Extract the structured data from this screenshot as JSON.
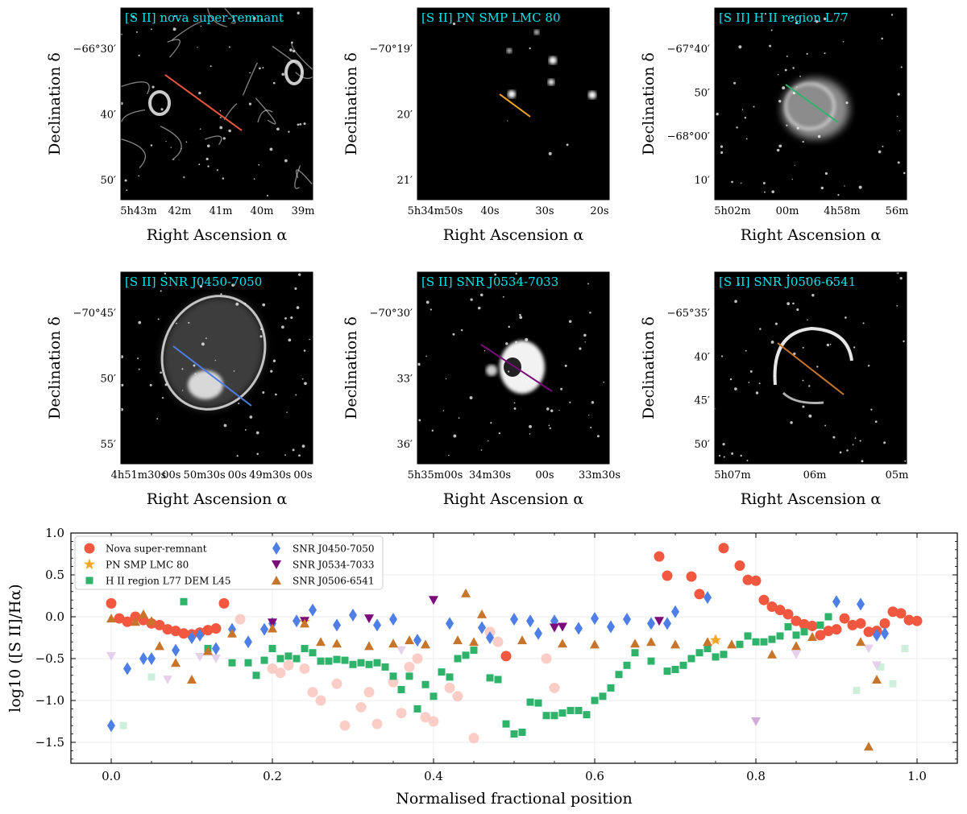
{
  "colors": {
    "nova": "#f2573f",
    "pn": "#f5a623",
    "hii": "#2fb36b",
    "j0450": "#4d7fe6",
    "j0534": "#7b0a7b",
    "j0506": "#c8752c",
    "label_cyan": "#00e5ee"
  },
  "panels": [
    {
      "label": "[S II] nova super-remnant",
      "xlabel": "Right Ascension α",
      "ylabel": "Declination δ",
      "x_ticks": [
        "5h43m",
        "42m",
        "41m",
        "40m",
        "39m"
      ],
      "y_ticks": [
        "−66°30′",
        "40′",
        "50′"
      ],
      "line_color": "#f2573f",
      "texture": "filaments"
    },
    {
      "label": "[S II] PN SMP LMC 80",
      "xlabel": "Right Ascension α",
      "ylabel": "Declination δ",
      "x_ticks": [
        "5h34m50s",
        "40s",
        "30s",
        "20s"
      ],
      "y_ticks": [
        "−70°19′",
        "20′",
        "21′"
      ],
      "line_color": "#f5a623",
      "texture": "dark"
    },
    {
      "label": "[S II] H II region L77",
      "xlabel": "Right Ascension α",
      "ylabel": "Declination δ",
      "x_ticks": [
        "5h02m",
        "00m",
        "4h58m",
        "56m"
      ],
      "y_ticks": [
        "−67°40′",
        "50′",
        "−68°00′",
        "10′"
      ],
      "line_color": "#2fb36b",
      "texture": "nebula"
    },
    {
      "label": "[S II] SNR J0450-7050",
      "xlabel": "Right Ascension α",
      "ylabel": "Declination δ",
      "x_ticks": [
        "4h51m30s",
        "00s",
        "50m30s",
        "00s",
        "49m30s",
        "00s"
      ],
      "y_ticks": [
        "−70°45′",
        "50′",
        "55′"
      ],
      "line_color": "#4d7fe6",
      "texture": "shell"
    },
    {
      "label": "[S II] SNR J0534-7033",
      "xlabel": "Right Ascension α",
      "ylabel": "Declination δ",
      "x_ticks": [
        "5h35m00s",
        "34m30s",
        "00s",
        "33m30s"
      ],
      "y_ticks": [
        "−70°30′",
        "33′",
        "36′"
      ],
      "line_color": "#7b0a7b",
      "texture": "blob"
    },
    {
      "label": "[S II] SNR J0506-6541",
      "xlabel": "Right Ascension α",
      "ylabel": "Declination δ",
      "x_ticks": [
        "5h07m",
        "06m",
        "05m"
      ],
      "y_ticks": [
        "−65°35′",
        "40′",
        "45′",
        "50′"
      ],
      "line_color": "#c8752c",
      "texture": "arc"
    }
  ],
  "chart_data": {
    "type": "scatter",
    "title": "",
    "xlabel": "Normalised fractional position",
    "ylabel": "log10 ([S II]/Hα)",
    "xlim": [
      -0.05,
      1.05
    ],
    "ylim": [
      -1.75,
      1.0
    ],
    "x_ticks": [
      "0.0",
      "0.2",
      "0.4",
      "0.6",
      "0.8",
      "1.0"
    ],
    "y_ticks": [
      "1.0",
      "0.5",
      "0.0",
      "−0.5",
      "−1.0",
      "−1.5"
    ],
    "grid": true,
    "legend_position": "top-left",
    "series": [
      {
        "name": "Nova super-remnant",
        "marker": "circle",
        "color": "#f2573f",
        "points": [
          [
            0.0,
            0.16
          ],
          [
            0.01,
            -0.02
          ],
          [
            0.02,
            -0.06
          ],
          [
            0.03,
            0.0
          ],
          [
            0.04,
            -0.04
          ],
          [
            0.05,
            -0.08
          ],
          [
            0.06,
            -0.1
          ],
          [
            0.07,
            -0.15
          ],
          [
            0.08,
            -0.17
          ],
          [
            0.09,
            -0.2
          ],
          [
            0.1,
            -0.21
          ],
          [
            0.11,
            -0.19
          ],
          [
            0.12,
            -0.16
          ],
          [
            0.13,
            -0.14
          ],
          [
            0.14,
            0.16
          ],
          [
            0.49,
            -0.47
          ],
          [
            0.68,
            0.72
          ],
          [
            0.69,
            0.49
          ],
          [
            0.72,
            0.48
          ],
          [
            0.73,
            0.27
          ],
          [
            0.76,
            0.82
          ],
          [
            0.78,
            0.61
          ],
          [
            0.79,
            0.44
          ],
          [
            0.8,
            0.43
          ],
          [
            0.81,
            0.2
          ],
          [
            0.82,
            0.12
          ],
          [
            0.83,
            0.08
          ],
          [
            0.84,
            0.03
          ],
          [
            0.85,
            -0.05
          ],
          [
            0.86,
            -0.09
          ],
          [
            0.87,
            -0.11
          ],
          [
            0.88,
            -0.22
          ],
          [
            0.89,
            -0.17
          ],
          [
            0.9,
            -0.15
          ],
          [
            0.91,
            -0.02
          ],
          [
            0.92,
            -0.1
          ],
          [
            0.93,
            -0.08
          ],
          [
            0.94,
            -0.18
          ],
          [
            0.95,
            -0.17
          ],
          [
            0.96,
            -0.08
          ],
          [
            0.97,
            0.06
          ],
          [
            0.98,
            0.04
          ],
          [
            0.99,
            -0.04
          ],
          [
            1.0,
            -0.05
          ]
        ]
      },
      {
        "name": "Nova super-remnant (faint)",
        "marker": "circle",
        "color": "#f9c6bc",
        "faint": true,
        "points": [
          [
            0.16,
            -0.03
          ],
          [
            0.2,
            -0.62
          ],
          [
            0.21,
            -0.67
          ],
          [
            0.22,
            -0.58
          ],
          [
            0.24,
            -0.62
          ],
          [
            0.25,
            -0.9
          ],
          [
            0.26,
            -1.0
          ],
          [
            0.28,
            -0.8
          ],
          [
            0.29,
            -1.3
          ],
          [
            0.31,
            -1.08
          ],
          [
            0.32,
            -0.9
          ],
          [
            0.33,
            -1.28
          ],
          [
            0.35,
            -0.78
          ],
          [
            0.36,
            -1.15
          ],
          [
            0.37,
            -0.6
          ],
          [
            0.38,
            -0.5
          ],
          [
            0.39,
            -1.2
          ],
          [
            0.4,
            -1.25
          ],
          [
            0.42,
            -0.85
          ],
          [
            0.43,
            -0.95
          ],
          [
            0.45,
            -1.45
          ],
          [
            0.47,
            -0.18
          ],
          [
            0.48,
            -0.3
          ],
          [
            0.54,
            -0.5
          ],
          [
            0.55,
            -0.85
          ]
        ]
      },
      {
        "name": "PN SMP LMC 80",
        "marker": "star",
        "color": "#f5a623",
        "points": [
          [
            0.24,
            -0.06
          ],
          [
            0.75,
            -0.28
          ]
        ]
      },
      {
        "name": "H II region L77 DEM L45",
        "marker": "square",
        "color": "#2fb36b",
        "points": [
          [
            0.09,
            0.18
          ],
          [
            0.12,
            -0.38
          ],
          [
            0.15,
            -0.55
          ],
          [
            0.17,
            -0.55
          ],
          [
            0.18,
            -0.7
          ],
          [
            0.19,
            -0.52
          ],
          [
            0.2,
            -0.38
          ],
          [
            0.21,
            -0.5
          ],
          [
            0.22,
            -0.47
          ],
          [
            0.23,
            -0.5
          ],
          [
            0.24,
            -0.38
          ],
          [
            0.25,
            -0.43
          ],
          [
            0.26,
            -0.53
          ],
          [
            0.27,
            -0.53
          ],
          [
            0.28,
            -0.51
          ],
          [
            0.29,
            -0.52
          ],
          [
            0.3,
            -0.57
          ],
          [
            0.31,
            -0.55
          ],
          [
            0.32,
            -0.57
          ],
          [
            0.33,
            -0.55
          ],
          [
            0.34,
            -0.6
          ],
          [
            0.35,
            -0.71
          ],
          [
            0.36,
            -0.87
          ],
          [
            0.37,
            -0.71
          ],
          [
            0.38,
            -1.1
          ],
          [
            0.39,
            -0.81
          ],
          [
            0.4,
            -0.95
          ],
          [
            0.41,
            -0.66
          ],
          [
            0.42,
            -0.72
          ],
          [
            0.43,
            -0.5
          ],
          [
            0.44,
            -0.46
          ],
          [
            0.45,
            -0.4
          ],
          [
            0.47,
            -0.73
          ],
          [
            0.48,
            -0.75
          ],
          [
            0.49,
            -1.28
          ],
          [
            0.5,
            -1.4
          ],
          [
            0.51,
            -1.38
          ],
          [
            0.52,
            -1.02
          ],
          [
            0.53,
            -1.03
          ],
          [
            0.54,
            -1.18
          ],
          [
            0.55,
            -1.18
          ],
          [
            0.56,
            -1.15
          ],
          [
            0.57,
            -1.12
          ],
          [
            0.58,
            -1.12
          ],
          [
            0.59,
            -1.17
          ],
          [
            0.6,
            -1.0
          ],
          [
            0.61,
            -0.95
          ],
          [
            0.62,
            -0.85
          ],
          [
            0.63,
            -0.69
          ],
          [
            0.64,
            -0.58
          ],
          [
            0.65,
            -0.43
          ],
          [
            0.67,
            -0.53
          ],
          [
            0.69,
            -0.65
          ],
          [
            0.7,
            -0.63
          ],
          [
            0.71,
            -0.58
          ],
          [
            0.72,
            -0.5
          ],
          [
            0.73,
            -0.43
          ],
          [
            0.74,
            -0.38
          ],
          [
            0.75,
            -0.48
          ],
          [
            0.76,
            -0.45
          ],
          [
            0.78,
            -0.33
          ],
          [
            0.79,
            -0.23
          ],
          [
            0.8,
            -0.3
          ],
          [
            0.81,
            -0.3
          ],
          [
            0.82,
            -0.27
          ],
          [
            0.83,
            -0.23
          ],
          [
            0.84,
            -0.12
          ],
          [
            0.85,
            -0.22
          ],
          [
            0.86,
            -0.18
          ],
          [
            0.88,
            -0.1
          ],
          [
            0.89,
            0.0
          ]
        ]
      },
      {
        "name": "H II region L77 DEM L45 (faint)",
        "marker": "square",
        "color": "#c6ecd5",
        "faint": true,
        "points": [
          [
            0.015,
            -1.3
          ],
          [
            0.05,
            -0.72
          ],
          [
            0.925,
            -0.88
          ],
          [
            0.955,
            -0.6
          ],
          [
            0.97,
            -0.8
          ],
          [
            0.985,
            -0.38
          ]
        ]
      },
      {
        "name": "SNR J0450-7050",
        "marker": "diamond",
        "color": "#4d7fe6",
        "points": [
          [
            0.0,
            -1.3
          ],
          [
            0.02,
            -0.62
          ],
          [
            0.04,
            -0.5
          ],
          [
            0.05,
            -0.5
          ],
          [
            0.08,
            -0.4
          ],
          [
            0.1,
            -0.25
          ],
          [
            0.11,
            -0.22
          ],
          [
            0.13,
            -0.38
          ],
          [
            0.15,
            -0.15
          ],
          [
            0.17,
            -0.3
          ],
          [
            0.19,
            -0.15
          ],
          [
            0.2,
            -0.08
          ],
          [
            0.23,
            -0.05
          ],
          [
            0.25,
            0.08
          ],
          [
            0.28,
            -0.1
          ],
          [
            0.3,
            0.02
          ],
          [
            0.33,
            -0.1
          ],
          [
            0.35,
            -0.03
          ],
          [
            0.38,
            -0.28
          ],
          [
            0.42,
            -0.08
          ],
          [
            0.46,
            -0.13
          ],
          [
            0.47,
            -0.25
          ],
          [
            0.5,
            -0.03
          ],
          [
            0.52,
            -0.05
          ],
          [
            0.53,
            -0.2
          ],
          [
            0.55,
            -0.05
          ],
          [
            0.58,
            -0.14
          ],
          [
            0.6,
            -0.02
          ],
          [
            0.62,
            -0.12
          ],
          [
            0.64,
            -0.03
          ],
          [
            0.67,
            -0.08
          ],
          [
            0.69,
            -0.08
          ],
          [
            0.7,
            0.06
          ],
          [
            0.74,
            0.23
          ],
          [
            0.9,
            0.18
          ],
          [
            0.93,
            0.15
          ],
          [
            0.95,
            -0.22
          ],
          [
            0.96,
            -0.2
          ]
        ]
      },
      {
        "name": "SNR J0534-7033",
        "marker": "triangle-down",
        "color": "#7b0a7b",
        "points": [
          [
            0.2,
            -0.07
          ],
          [
            0.24,
            -0.05
          ],
          [
            0.32,
            -0.02
          ],
          [
            0.4,
            0.2
          ],
          [
            0.55,
            -0.13
          ],
          [
            0.56,
            -0.12
          ],
          [
            0.68,
            -0.05
          ]
        ]
      },
      {
        "name": "SNR J0534-7033 (faint)",
        "marker": "triangle-down",
        "color": "#e3c8e8",
        "faint": true,
        "points": [
          [
            0.0,
            -0.47
          ],
          [
            0.07,
            -0.75
          ],
          [
            0.11,
            -0.48
          ],
          [
            0.13,
            -0.5
          ],
          [
            0.36,
            -0.4
          ],
          [
            0.47,
            -0.26
          ],
          [
            0.85,
            -0.45
          ],
          [
            0.94,
            -0.38
          ],
          [
            0.95,
            -0.58
          ]
        ]
      },
      {
        "name": "SNR J0534-7033 (outlier)",
        "marker": "triangle-down",
        "color": "#c9a0d2",
        "faint": true,
        "points": [
          [
            0.8,
            -1.25
          ]
        ]
      },
      {
        "name": "SNR J0506-6541",
        "marker": "triangle",
        "color": "#c8752c",
        "points": [
          [
            0.0,
            -0.02
          ],
          [
            0.03,
            -0.06
          ],
          [
            0.04,
            0.03
          ],
          [
            0.05,
            -0.05
          ],
          [
            0.06,
            -0.35
          ],
          [
            0.08,
            -0.55
          ],
          [
            0.1,
            -0.75
          ],
          [
            0.12,
            -0.41
          ],
          [
            0.15,
            -0.2
          ],
          [
            0.2,
            -0.14
          ],
          [
            0.24,
            -0.08
          ],
          [
            0.26,
            -0.3
          ],
          [
            0.28,
            -0.32
          ],
          [
            0.32,
            -0.35
          ],
          [
            0.35,
            -0.32
          ],
          [
            0.37,
            -0.28
          ],
          [
            0.39,
            -0.33
          ],
          [
            0.43,
            -0.28
          ],
          [
            0.44,
            0.28
          ],
          [
            0.45,
            -0.3
          ],
          [
            0.46,
            0.03
          ],
          [
            0.51,
            -0.28
          ],
          [
            0.56,
            -0.32
          ],
          [
            0.6,
            -0.33
          ],
          [
            0.65,
            -0.32
          ],
          [
            0.67,
            -0.3
          ],
          [
            0.7,
            -0.33
          ],
          [
            0.74,
            -0.3
          ],
          [
            0.77,
            -0.33
          ],
          [
            0.82,
            -0.45
          ],
          [
            0.85,
            -0.35
          ],
          [
            0.87,
            -0.24
          ],
          [
            0.93,
            -0.3
          ],
          [
            0.94,
            -1.55
          ],
          [
            0.95,
            -0.75
          ]
        ]
      },
      {
        "name": "SNR J0506-6541 (faint)",
        "marker": "triangle",
        "color": "#f6c39a",
        "faint": true,
        "points": [
          [
            0.75,
            -0.26
          ]
        ]
      }
    ],
    "legend": [
      {
        "label": "Nova super-remnant",
        "marker": "circle",
        "color": "#f2573f"
      },
      {
        "label": "PN SMP LMC 80",
        "marker": "star",
        "color": "#f5a623"
      },
      {
        "label": "H II region L77 DEM L45",
        "marker": "square",
        "color": "#2fb36b"
      },
      {
        "label": "SNR J0450-7050",
        "marker": "diamond",
        "color": "#4d7fe6"
      },
      {
        "label": "SNR J0534-7033",
        "marker": "triangle-down",
        "color": "#7b0a7b"
      },
      {
        "label": "SNR J0506-6541",
        "marker": "triangle",
        "color": "#c8752c"
      }
    ]
  }
}
